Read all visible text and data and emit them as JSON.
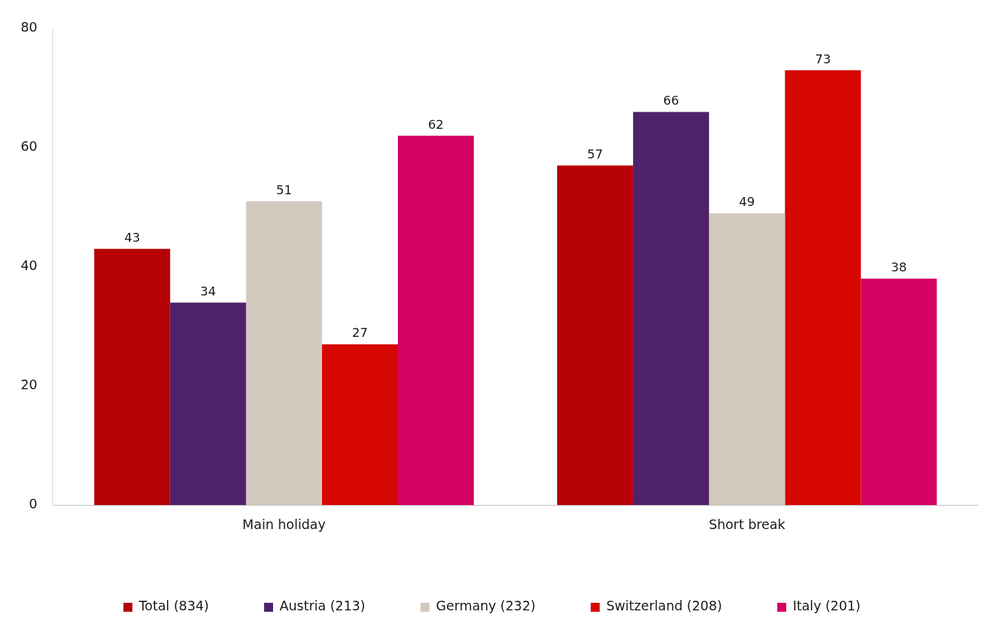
{
  "chart_data": {
    "type": "bar",
    "categories": [
      "Main holiday",
      "Short break"
    ],
    "series": [
      {
        "name": "Total (834)",
        "color": "#b50005",
        "values": [
          43,
          57
        ]
      },
      {
        "name": "Austria (213)",
        "color": "#4f216b",
        "values": [
          34,
          66
        ]
      },
      {
        "name": "Germany (232)",
        "color": "#d3c9bf",
        "values": [
          51,
          49
        ]
      },
      {
        "name": "Switzerland (208)",
        "color": "#d60600",
        "values": [
          27,
          73
        ]
      },
      {
        "name": "Italy (201)",
        "color": "#d40063",
        "values": [
          62,
          38
        ]
      }
    ],
    "ylim": [
      0,
      80
    ],
    "yticks": [
      0,
      20,
      40,
      60,
      80
    ],
    "grid": false,
    "legend": "bottom",
    "data_labels": true
  }
}
